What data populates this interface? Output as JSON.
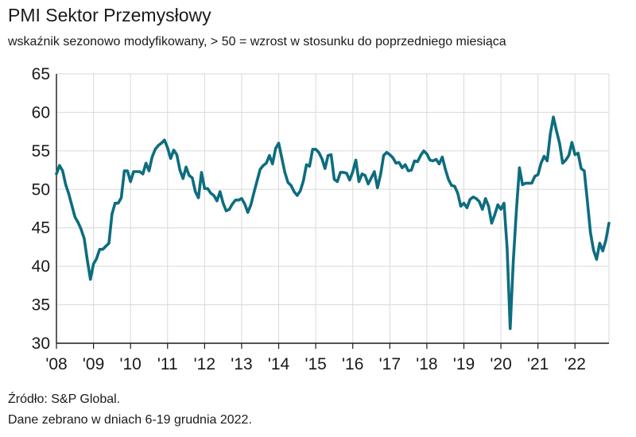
{
  "header": {
    "title": "PMI Sektor Przemysłowy",
    "subtitle": "wskaźnik sezonowo modyfikowany, > 50 = wzrost w stosunku do poprzedniego miesiąca"
  },
  "footer": {
    "source": "Źródło: S&P Global.",
    "note": "Dane zebrano w dniach 6-19 grudnia 2022."
  },
  "colors": {
    "line": "#0d6d7f",
    "grid": "#d9d9d9",
    "axis": "#1a1a1a"
  },
  "chart_data": {
    "type": "line",
    "title": "PMI Sektor Przemysłowy",
    "subtitle": "wskaźnik sezonowo modyfikowany, > 50 = wzrost w stosunku do poprzedniego miesiąca",
    "xlabel": "",
    "ylabel": "",
    "ylim": [
      30,
      65
    ],
    "xlim": [
      2008.0,
      2022.917
    ],
    "yticks": [
      30,
      35,
      40,
      45,
      50,
      55,
      60,
      65
    ],
    "xticks": [
      {
        "value": 2008,
        "label": "'08"
      },
      {
        "value": 2009,
        "label": "'09"
      },
      {
        "value": 2010,
        "label": "'10"
      },
      {
        "value": 2011,
        "label": "'11"
      },
      {
        "value": 2012,
        "label": "'12"
      },
      {
        "value": 2013,
        "label": "'13"
      },
      {
        "value": 2014,
        "label": "'14"
      },
      {
        "value": 2015,
        "label": "'15"
      },
      {
        "value": 2016,
        "label": "'16"
      },
      {
        "value": 2017,
        "label": "'17"
      },
      {
        "value": 2018,
        "label": "'18"
      },
      {
        "value": 2019,
        "label": "'19"
      },
      {
        "value": 2020,
        "label": "'20"
      },
      {
        "value": 2021,
        "label": "'21"
      },
      {
        "value": 2022,
        "label": "'22"
      }
    ],
    "grid": "horizontal and vertical",
    "series": [
      {
        "x_start": "2008-01",
        "frequency": "monthly",
        "values": [
          52.0,
          53.1,
          52.4,
          50.6,
          49.4,
          47.9,
          46.4,
          45.7,
          44.8,
          43.6,
          40.8,
          38.3,
          40.3,
          41.0,
          42.2,
          42.2,
          42.6,
          43.0,
          46.8,
          48.2,
          48.2,
          48.9,
          52.4,
          52.4,
          51.0,
          52.3,
          52.3,
          52.3,
          52.0,
          53.4,
          52.4,
          54.2,
          55.2,
          55.7,
          56.0,
          56.4,
          55.4,
          54.0,
          55.1,
          54.5,
          52.5,
          51.4,
          52.9,
          51.8,
          51.5,
          49.7,
          48.9,
          52.2,
          50.1,
          50.1,
          49.5,
          49.2,
          48.5,
          49.7,
          48.2,
          47.2,
          47.4,
          48.1,
          48.6,
          48.6,
          48.8,
          48.1,
          47.0,
          48.0,
          49.6,
          51.1,
          52.6,
          53.1,
          53.4,
          54.4,
          53.3,
          55.3,
          56.0,
          54.1,
          52.2,
          50.9,
          50.5,
          49.7,
          49.2,
          49.8,
          51.1,
          53.2,
          53.0,
          55.2,
          55.2,
          54.8,
          54.0,
          52.7,
          54.4,
          54.5,
          51.3,
          51.0,
          52.2,
          52.2,
          52.1,
          51.2,
          52.3,
          53.8,
          51.0,
          52.0,
          51.8,
          50.7,
          51.5,
          52.3,
          50.2,
          51.9,
          54.4,
          54.8,
          54.5,
          54.1,
          53.4,
          53.5,
          52.8,
          53.2,
          52.4,
          52.5,
          53.7,
          53.6,
          54.4,
          55.0,
          54.6,
          53.8,
          53.7,
          53.9,
          53.3,
          54.2,
          52.6,
          51.3,
          50.5,
          50.4,
          49.5,
          47.8,
          48.2,
          47.6,
          48.7,
          49.0,
          48.8,
          48.4,
          47.4,
          48.8,
          47.8,
          45.6,
          46.7,
          48.0,
          47.4,
          48.2,
          42.4,
          31.9,
          40.6,
          47.2,
          52.8,
          50.6,
          50.8,
          50.8,
          50.8,
          51.7,
          51.9,
          53.4,
          54.3,
          53.7,
          57.2,
          59.4,
          57.6,
          56.0,
          53.4,
          53.8,
          54.4,
          56.1,
          54.5,
          54.7,
          52.7,
          52.4,
          48.5,
          44.4,
          42.1,
          40.9,
          43.0,
          42.0,
          43.4,
          45.6
        ]
      }
    ]
  }
}
